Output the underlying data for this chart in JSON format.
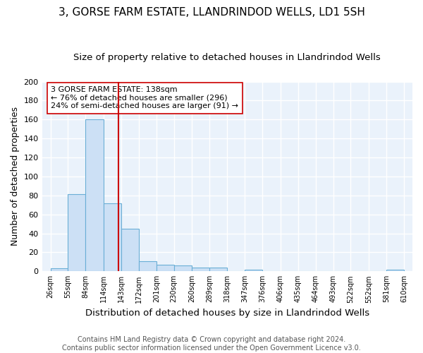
{
  "title1": "3, GORSE FARM ESTATE, LLANDRINDOD WELLS, LD1 5SH",
  "title2": "Size of property relative to detached houses in Llandrindod Wells",
  "xlabel": "Distribution of detached houses by size in Llandrindod Wells",
  "ylabel": "Number of detached properties",
  "footnote": "Contains HM Land Registry data © Crown copyright and database right 2024.\nContains public sector information licensed under the Open Government Licence v3.0.",
  "bin_edges": [
    26,
    55,
    84,
    114,
    143,
    172,
    201,
    230,
    260,
    289,
    318,
    347,
    376,
    406,
    435,
    464,
    493,
    522,
    552,
    581,
    610
  ],
  "bar_heights": [
    3,
    81,
    160,
    72,
    45,
    11,
    7,
    6,
    4,
    4,
    0,
    2,
    0,
    0,
    0,
    0,
    0,
    0,
    0,
    2
  ],
  "bar_color": "#cce0f5",
  "bar_edgecolor": "#6aaed6",
  "vline_x": 138,
  "vline_color": "#cc0000",
  "annotation_text": "3 GORSE FARM ESTATE: 138sqm\n← 76% of detached houses are smaller (296)\n24% of semi-detached houses are larger (91) →",
  "bg_color": "#eaf2fb",
  "grid_color": "#ffffff",
  "ylim": [
    0,
    200
  ],
  "yticks": [
    0,
    20,
    40,
    60,
    80,
    100,
    120,
    140,
    160,
    180,
    200
  ],
  "title1_fontsize": 11,
  "title2_fontsize": 9.5,
  "xlabel_fontsize": 9.5,
  "ylabel_fontsize": 9,
  "annotation_fontsize": 8,
  "footnote_fontsize": 7
}
